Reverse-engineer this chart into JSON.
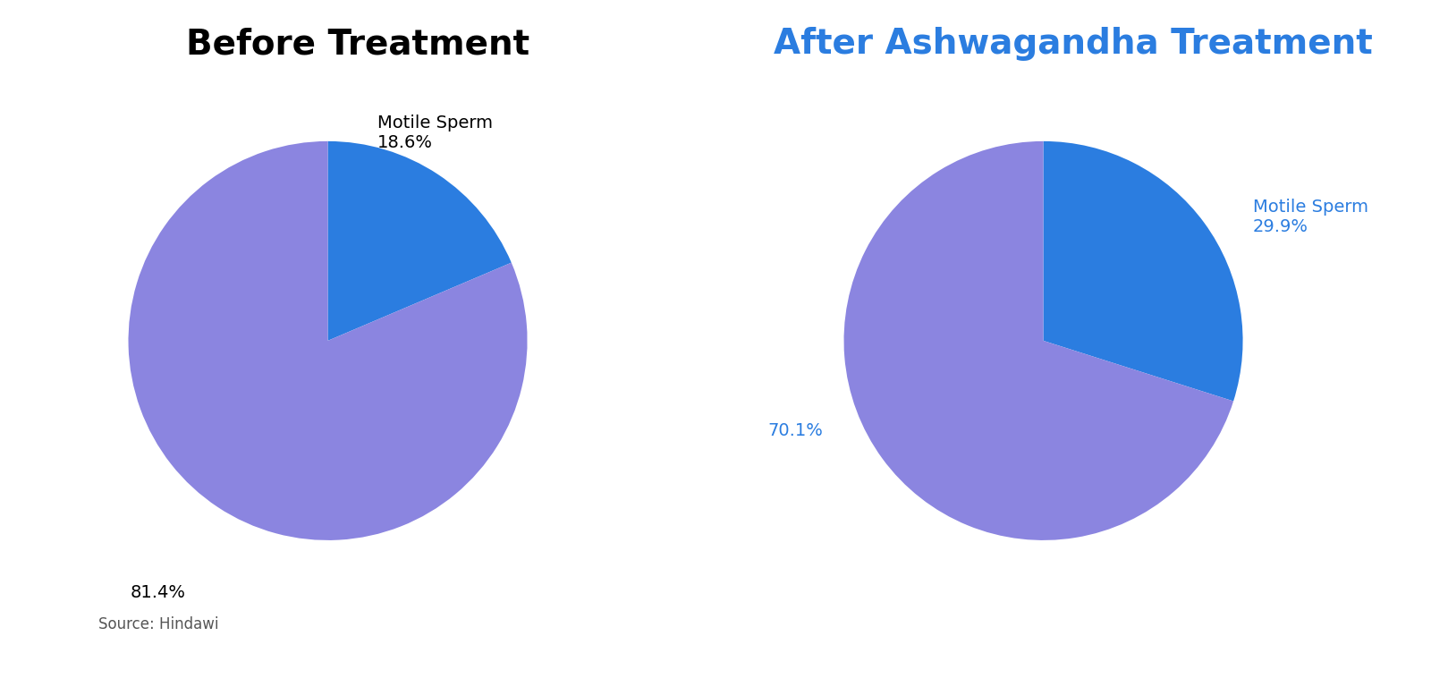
{
  "before": {
    "title": "Before Treatment",
    "title_color": "#000000",
    "title_fontsize": 28,
    "title_fontweight": "bold",
    "values": [
      18.6,
      81.4
    ],
    "colors": [
      "#2b7de0",
      "#8b85e0"
    ],
    "startangle": 90,
    "source_text": "Source: Hindawi"
  },
  "after": {
    "title": "After Ashwagandha Treatment",
    "title_color": "#2b7de0",
    "title_fontsize": 28,
    "title_fontweight": "bold",
    "values": [
      29.9,
      70.1
    ],
    "colors": [
      "#2b7de0",
      "#8b85e0"
    ],
    "startangle": 90
  },
  "bg_color": "#ffffff",
  "label_fontsize": 14,
  "source_fontsize": 12
}
